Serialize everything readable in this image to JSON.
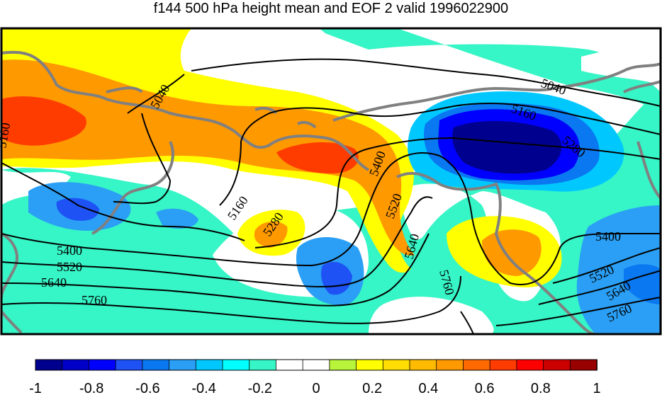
{
  "title": "f144 500 hPa height mean and EOF 2 valid 1996022900",
  "contour_labels": {
    "c5040a": "5040",
    "c5040b": "5040",
    "c5160a": "5160",
    "c5160b": "5160",
    "c5280a": "5280",
    "c5280b": "5280",
    "c5400a": "5400",
    "c5400b": "5400",
    "c5400c": "5400",
    "c5520a": "5520",
    "c5520b": "5520",
    "c5520c": "5520",
    "c5640a": "5640",
    "c5640b": "5640",
    "c5640c": "5640",
    "c5760a": "5760",
    "c5760b": "5760",
    "c5760c": "5760",
    "c5160left": "5160"
  },
  "colorbar": {
    "colors": [
      "#00008f",
      "#0000c8",
      "#0000ff",
      "#1e52f5",
      "#0a78f0",
      "#2a9ff5",
      "#00c8ff",
      "#00ffff",
      "#36f5c6",
      "#ffffff",
      "#ffffff",
      "#b8f53a",
      "#ffff00",
      "#ffdd00",
      "#ffbb00",
      "#ff9900",
      "#ff6a00",
      "#ff3c00",
      "#ff0000",
      "#cc0000",
      "#990000"
    ],
    "tick_labels": [
      "-1",
      "-0.8",
      "-0.6",
      "-0.4",
      "-0.2",
      "0",
      "0.2",
      "0.4",
      "0.6",
      "0.8",
      "1"
    ],
    "range": [
      -1,
      1
    ]
  },
  "colors": {
    "coastline": "#808080",
    "contour": "#000000",
    "frame": "#000000"
  }
}
